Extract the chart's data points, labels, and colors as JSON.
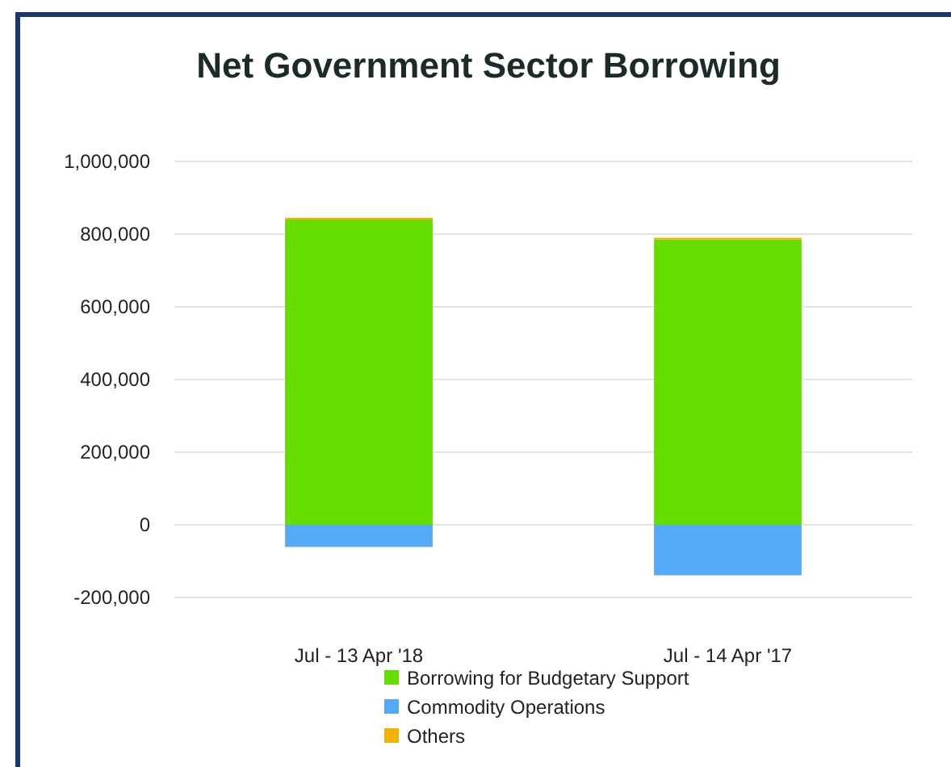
{
  "chart_data": {
    "type": "bar",
    "title": "Net Government Sector Borrowing",
    "categories": [
      "Jul - 13 Apr '18",
      "Jul - 14 Apr '17"
    ],
    "stacked": true,
    "series": [
      {
        "name": "Borrowing for Budgetary Support",
        "color": "#66dd00",
        "values": [
          840000,
          785000
        ]
      },
      {
        "name": "Commodity Operations",
        "color": "#55aaf5",
        "values": [
          -61000,
          -139000
        ]
      },
      {
        "name": "Others",
        "color": "#f0b400",
        "values": [
          5000,
          5000
        ]
      }
    ],
    "ylim": [
      -200000,
      1000000
    ],
    "yticks": [
      {
        "value": -200000,
        "label": "-200,000"
      },
      0,
      {
        "value": 200000,
        "label": "200,000"
      },
      {
        "value": 400000,
        "label": "400,000"
      },
      {
        "value": 600000,
        "label": "600,000"
      },
      {
        "value": 800000,
        "label": "800,000"
      },
      {
        "value": 1000000,
        "label": "1,000,000"
      }
    ],
    "grid": "y",
    "legend": "bottom"
  }
}
